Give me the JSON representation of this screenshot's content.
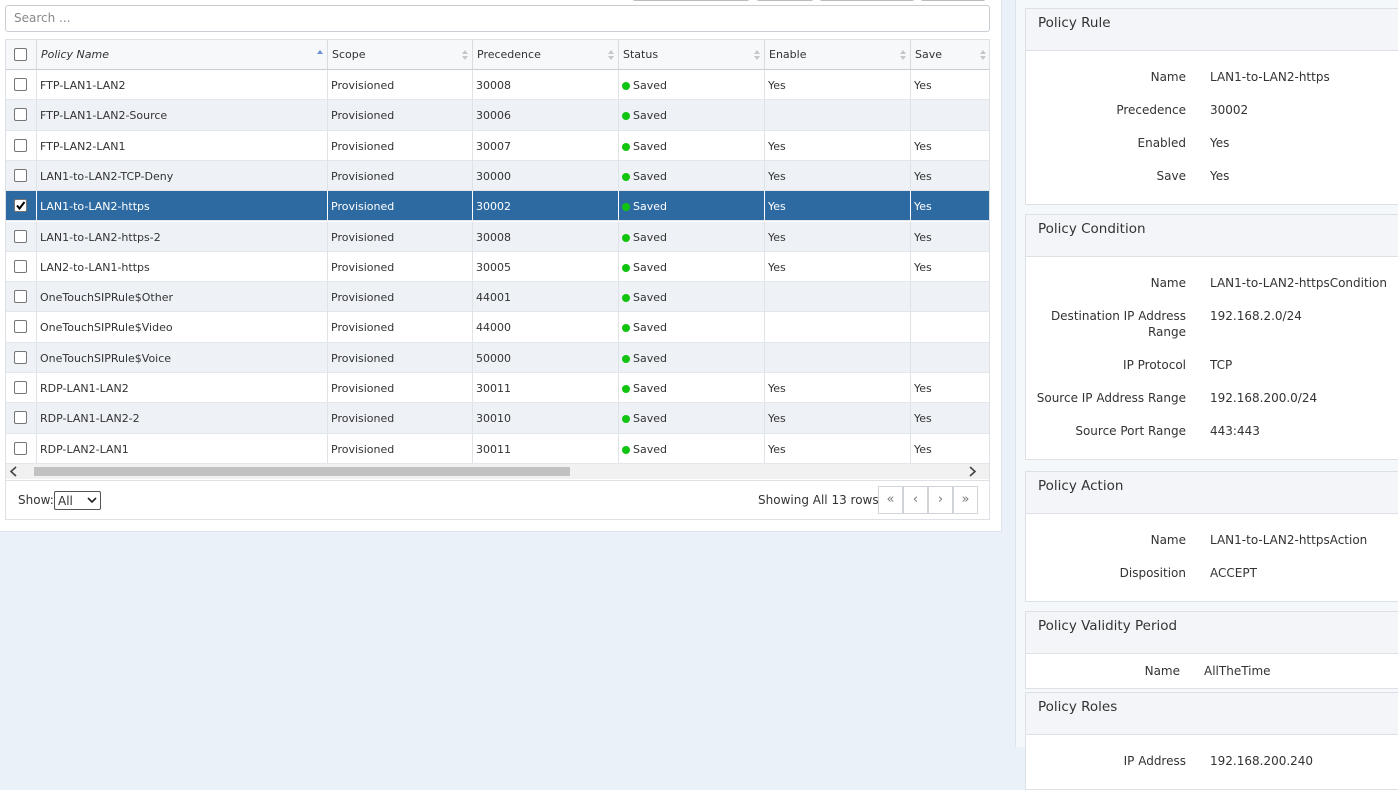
{
  "search": {
    "placeholder": "Search ..."
  },
  "table": {
    "columns": [
      "Policy Name",
      "Scope",
      "Precedence",
      "Status",
      "Enable",
      "Save"
    ],
    "sorted_column": 0,
    "selected_row": 4,
    "rows": [
      [
        "FTP-LAN1-LAN2",
        "Provisioned",
        30008,
        "Saved",
        "Yes",
        "Yes"
      ],
      [
        "FTP-LAN1-LAN2-Source",
        "Provisioned",
        30006,
        "Saved",
        null,
        null
      ],
      [
        "FTP-LAN2-LAN1",
        "Provisioned",
        30007,
        "Saved",
        "Yes",
        "Yes"
      ],
      [
        "LAN1-to-LAN2-TCP-Deny",
        "Provisioned",
        30000,
        "Saved",
        "Yes",
        "Yes"
      ],
      [
        "LAN1-to-LAN2-https",
        "Provisioned",
        30002,
        "Saved",
        "Yes",
        "Yes"
      ],
      [
        "LAN1-to-LAN2-https-2",
        "Provisioned",
        30008,
        "Saved",
        "Yes",
        "Yes"
      ],
      [
        "LAN2-to-LAN1-https",
        "Provisioned",
        30005,
        "Saved",
        "Yes",
        "Yes"
      ],
      [
        "OneTouchSIPRule$Other",
        "Provisioned",
        44001,
        "Saved",
        null,
        null
      ],
      [
        "OneTouchSIPRule$Video",
        "Provisioned",
        44000,
        "Saved",
        null,
        null
      ],
      [
        "OneTouchSIPRule$Voice",
        "Provisioned",
        50000,
        "Saved",
        null,
        null
      ],
      [
        "RDP-LAN1-LAN2",
        "Provisioned",
        30011,
        "Saved",
        "Yes",
        "Yes"
      ],
      [
        "RDP-LAN1-LAN2-2",
        "Provisioned",
        30010,
        "Saved",
        "Yes",
        "Yes"
      ],
      [
        "RDP-LAN2-LAN1",
        "Provisioned",
        30011,
        "Saved",
        "Yes",
        "Yes"
      ]
    ]
  },
  "footer": {
    "show_label": "Show:",
    "show_option": "All",
    "summary": "Showing All 13 rows"
  },
  "details": [
    {
      "title": "Policy Rule",
      "fields": [
        {
          "label": "Name",
          "value": "LAN1-to-LAN2-https"
        },
        {
          "label": "Precedence",
          "value": 30002
        },
        {
          "label": "Enabled",
          "value": "Yes"
        },
        {
          "label": "Save",
          "value": "Yes"
        }
      ]
    },
    {
      "title": "Policy Condition",
      "fields": [
        {
          "label": "Name",
          "value": "LAN1-to-LAN2-httpsCondition"
        },
        {
          "label": "Destination IP Address Range",
          "value": "192.168.2.0/24"
        },
        {
          "label": "IP Protocol",
          "value": "TCP"
        },
        {
          "label": "Source IP Address Range",
          "value": "192.168.200.0/24"
        },
        {
          "label": "Source Port Range",
          "value": "443:443"
        }
      ]
    },
    {
      "title": "Policy Action",
      "fields": [
        {
          "label": "Name",
          "value": "LAN1-to-LAN2-httpsAction"
        },
        {
          "label": "Disposition",
          "value": "ACCEPT"
        }
      ]
    },
    {
      "title": "Policy Validity Period",
      "fields": [
        {
          "label": "Name",
          "value": "AllTheTime"
        }
      ]
    },
    {
      "title": "Policy Roles",
      "fields": [
        {
          "label": "IP Address",
          "value": "192.168.200.240"
        }
      ]
    }
  ]
}
